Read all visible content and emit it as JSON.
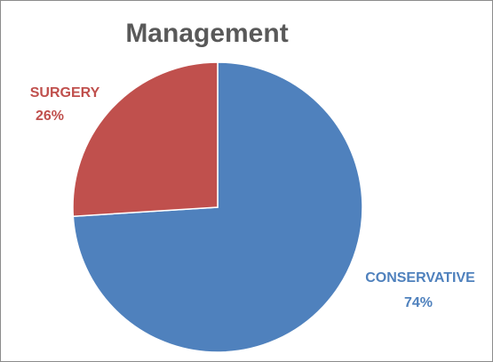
{
  "chart_data": {
    "type": "pie",
    "title": "Management",
    "slices": [
      {
        "name": "CONSERVATIVE",
        "value": 74,
        "value_label": "74%",
        "color": "#4f81bd"
      },
      {
        "name": "SURGERY",
        "value": 26,
        "value_label": "26%",
        "color": "#c0504d"
      }
    ],
    "start_angle_deg": 0,
    "direction": "clockwise",
    "legend": "none",
    "label_style": "category and percentage outside slices"
  }
}
